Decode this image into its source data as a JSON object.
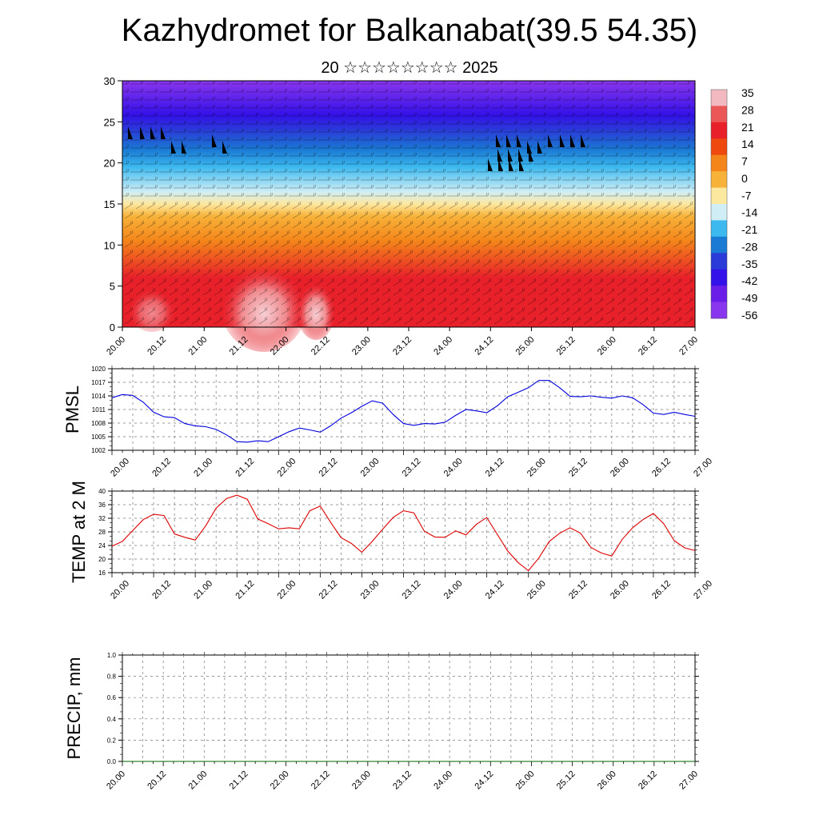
{
  "header": {
    "title": "Kazhydromet for Balkanabat(39.5 54.35)",
    "subtitle": "20 ☆☆☆☆☆☆☆☆ 2025"
  },
  "time_axis": [
    "20.00",
    "20.12",
    "21.00",
    "21.12",
    "22.00",
    "22.12",
    "23.00",
    "23.12",
    "24.00",
    "24.12",
    "25.00",
    "25.12",
    "26.00",
    "26.12",
    "27.00"
  ],
  "colorbar": {
    "labels": [
      "35",
      "28",
      "21",
      "14",
      "7",
      "0",
      "-7",
      "-14",
      "-21",
      "-28",
      "-35",
      "-42",
      "-49",
      "-56"
    ],
    "colors": [
      "#f2b9c1",
      "#eb5656",
      "#e8202a",
      "#ee4a10",
      "#f4851a",
      "#f7b239",
      "#fde8a0",
      "#cfeef6",
      "#3cb9ef",
      "#1a7ad4",
      "#2a3bd8",
      "#3311e8",
      "#6a1ee8",
      "#8a36ee"
    ]
  },
  "chart_data": [
    {
      "type": "heatmap",
      "title": "",
      "xlabel": "",
      "ylabel": "",
      "ylim": [
        0,
        30
      ],
      "y_ticks": [
        "0",
        "5",
        "10",
        "15",
        "20",
        "25",
        "30"
      ],
      "x_ticks": [
        "20.00",
        "20.12",
        "21.00",
        "21.12",
        "22.00",
        "22.12",
        "23.00",
        "23.12",
        "24.00",
        "24.12",
        "25.00",
        "25.12",
        "26.00",
        "26.12",
        "27.00"
      ],
      "description_levels": [
        0,
        5,
        10,
        15,
        20,
        25,
        30
      ],
      "temperature_bands_c": [
        {
          "level": 0,
          "value": 30
        },
        {
          "level": 5,
          "value": 25
        },
        {
          "level": 10,
          "value": 18
        },
        {
          "level": 15,
          "value": 2
        },
        {
          "level": 20,
          "value": -30
        },
        {
          "level": 25,
          "value": -50
        },
        {
          "level": 30,
          "value": -58
        }
      ]
    },
    {
      "type": "line",
      "ylabel": "PMSL",
      "ylim": [
        1002,
        1020
      ],
      "y_ticks": [
        "1002",
        "1005",
        "1008",
        "1011",
        "1014",
        "1017",
        "1020"
      ],
      "x_ticks": [
        "20.00",
        "20.12",
        "21.00",
        "21.12",
        "22.00",
        "22.12",
        "23.00",
        "23.12",
        "24.00",
        "24.12",
        "25.00",
        "25.12",
        "26.00",
        "26.12",
        "27.00"
      ],
      "series": [
        {
          "color": "#0000dd",
          "x": [
            0,
            3,
            6,
            9,
            12,
            15,
            18,
            21,
            24,
            27,
            30,
            33,
            36,
            39,
            42,
            45,
            48,
            51,
            54,
            57,
            60,
            63,
            66,
            69,
            72,
            75,
            78,
            81,
            84,
            87,
            90,
            93,
            96,
            99,
            102,
            105,
            108,
            111,
            114,
            117,
            120,
            123,
            126,
            129,
            132,
            135,
            138,
            141,
            144,
            147,
            150,
            153,
            156,
            159,
            162,
            165,
            168
          ],
          "values": [
            1013.6,
            1014.3,
            1014.1,
            1012.6,
            1010.4,
            1009.4,
            1009.2,
            1007.9,
            1007.4,
            1007.2,
            1006.6,
            1005.4,
            1003.9,
            1003.8,
            1004.1,
            1003.9,
            1005.0,
            1006.1,
            1006.9,
            1006.5,
            1006.0,
            1007.4,
            1009.1,
            1010.3,
            1011.7,
            1012.9,
            1012.4,
            1009.9,
            1007.9,
            1007.5,
            1007.9,
            1007.8,
            1008.2,
            1009.7,
            1011.0,
            1010.7,
            1010.3,
            1011.8,
            1013.8,
            1014.8,
            1015.8,
            1017.4,
            1017.4,
            1015.8,
            1013.9,
            1013.8,
            1014.0,
            1013.7,
            1013.5,
            1014.0,
            1013.6,
            1012.1,
            1010.2,
            1009.9,
            1010.4,
            1009.9,
            1009.5
          ]
        }
      ]
    },
    {
      "type": "line",
      "ylabel": "TEMP at 2 M",
      "ylim": [
        16,
        40
      ],
      "y_ticks": [
        "16",
        "20",
        "24",
        "28",
        "32",
        "36",
        "40"
      ],
      "x_ticks": [
        "20.00",
        "20.12",
        "21.00",
        "21.12",
        "22.00",
        "22.12",
        "23.00",
        "23.12",
        "24.00",
        "24.12",
        "25.00",
        "25.12",
        "26.00",
        "26.12",
        "27.00"
      ],
      "series": [
        {
          "color": "#dd0000",
          "x": [
            0,
            3,
            6,
            9,
            12,
            15,
            18,
            21,
            24,
            27,
            30,
            33,
            36,
            39,
            42,
            45,
            48,
            51,
            54,
            57,
            60,
            63,
            66,
            69,
            72,
            75,
            78,
            81,
            84,
            87,
            90,
            93,
            96,
            99,
            102,
            105,
            108,
            111,
            114,
            117,
            120,
            123,
            126,
            129,
            132,
            135,
            138,
            141,
            144,
            147,
            150,
            153,
            156,
            159,
            162,
            165,
            168
          ],
          "values": [
            23.8,
            25.2,
            28.4,
            31.6,
            33.2,
            32.8,
            27.4,
            26.4,
            25.6,
            29.8,
            35.0,
            37.8,
            38.8,
            37.6,
            31.8,
            30.4,
            28.9,
            29.2,
            28.9,
            34.2,
            35.6,
            30.8,
            26.3,
            24.6,
            22.0,
            25.2,
            28.8,
            32.2,
            34.2,
            33.6,
            28.2,
            26.5,
            26.4,
            28.3,
            27.1,
            30.2,
            32.2,
            27.3,
            22.4,
            19.0,
            16.6,
            20.3,
            25.2,
            27.6,
            29.2,
            27.6,
            23.4,
            21.8,
            20.9,
            25.8,
            29.2,
            31.6,
            33.4,
            30.4,
            25.4,
            23.3,
            22.5
          ]
        }
      ]
    },
    {
      "type": "line",
      "ylabel": "PRECIP, mm",
      "ylim": [
        0,
        1
      ],
      "y_ticks": [
        "0.0",
        "0.2",
        "0.4",
        "0.6",
        "0.8",
        "1.0"
      ],
      "x_ticks": [
        "20.00",
        "20.12",
        "21.00",
        "21.12",
        "22.00",
        "22.12",
        "23.00",
        "23.12",
        "24.00",
        "24.12",
        "25.00",
        "25.12",
        "26.00",
        "26.12",
        "27.00"
      ],
      "series": [
        {
          "color": "#006400",
          "x": [
            0,
            168
          ],
          "values": [
            0,
            0
          ]
        }
      ]
    }
  ]
}
